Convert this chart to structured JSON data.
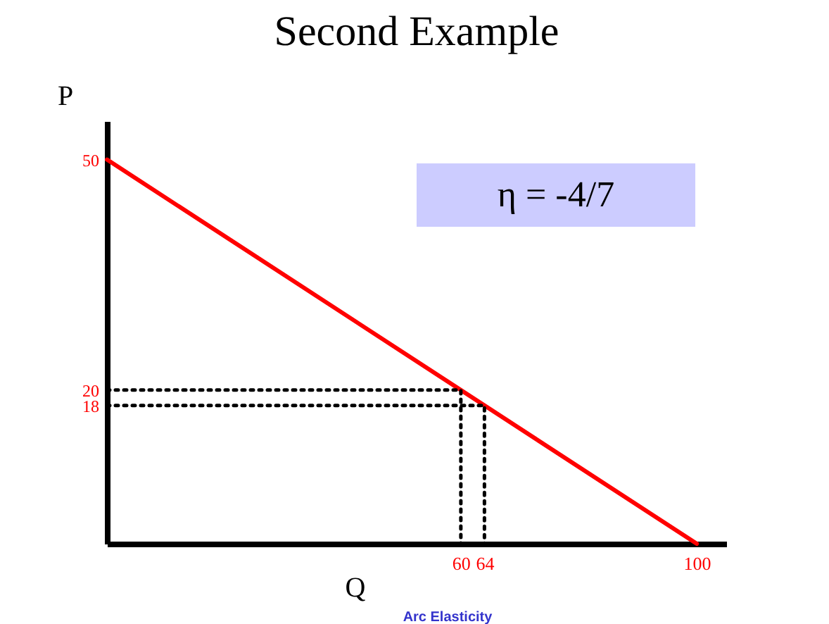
{
  "chart_data": {
    "type": "line",
    "title": "Second Example",
    "xlabel": "Q",
    "ylabel": "P",
    "xlim": [
      0,
      105
    ],
    "ylim": [
      0,
      55
    ],
    "xticks": [
      60,
      64,
      100
    ],
    "yticks": [
      50,
      20,
      18
    ],
    "grid": false,
    "marker": "none",
    "series": [
      {
        "x": [
          0,
          100
        ],
        "values": [
          50,
          0
        ],
        "color": "#ff0000",
        "line_style": "solid"
      },
      {
        "x": [
          0,
          60,
          60
        ],
        "values": [
          20,
          20,
          0
        ],
        "color": "#000000",
        "line_style": "dotted"
      },
      {
        "x": [
          0,
          64,
          64
        ],
        "values": [
          18,
          18,
          0
        ],
        "color": "#000000",
        "line_style": "dotted"
      }
    ],
    "annotations": [
      "η = -4/7",
      "Arc Elasticity"
    ]
  }
}
